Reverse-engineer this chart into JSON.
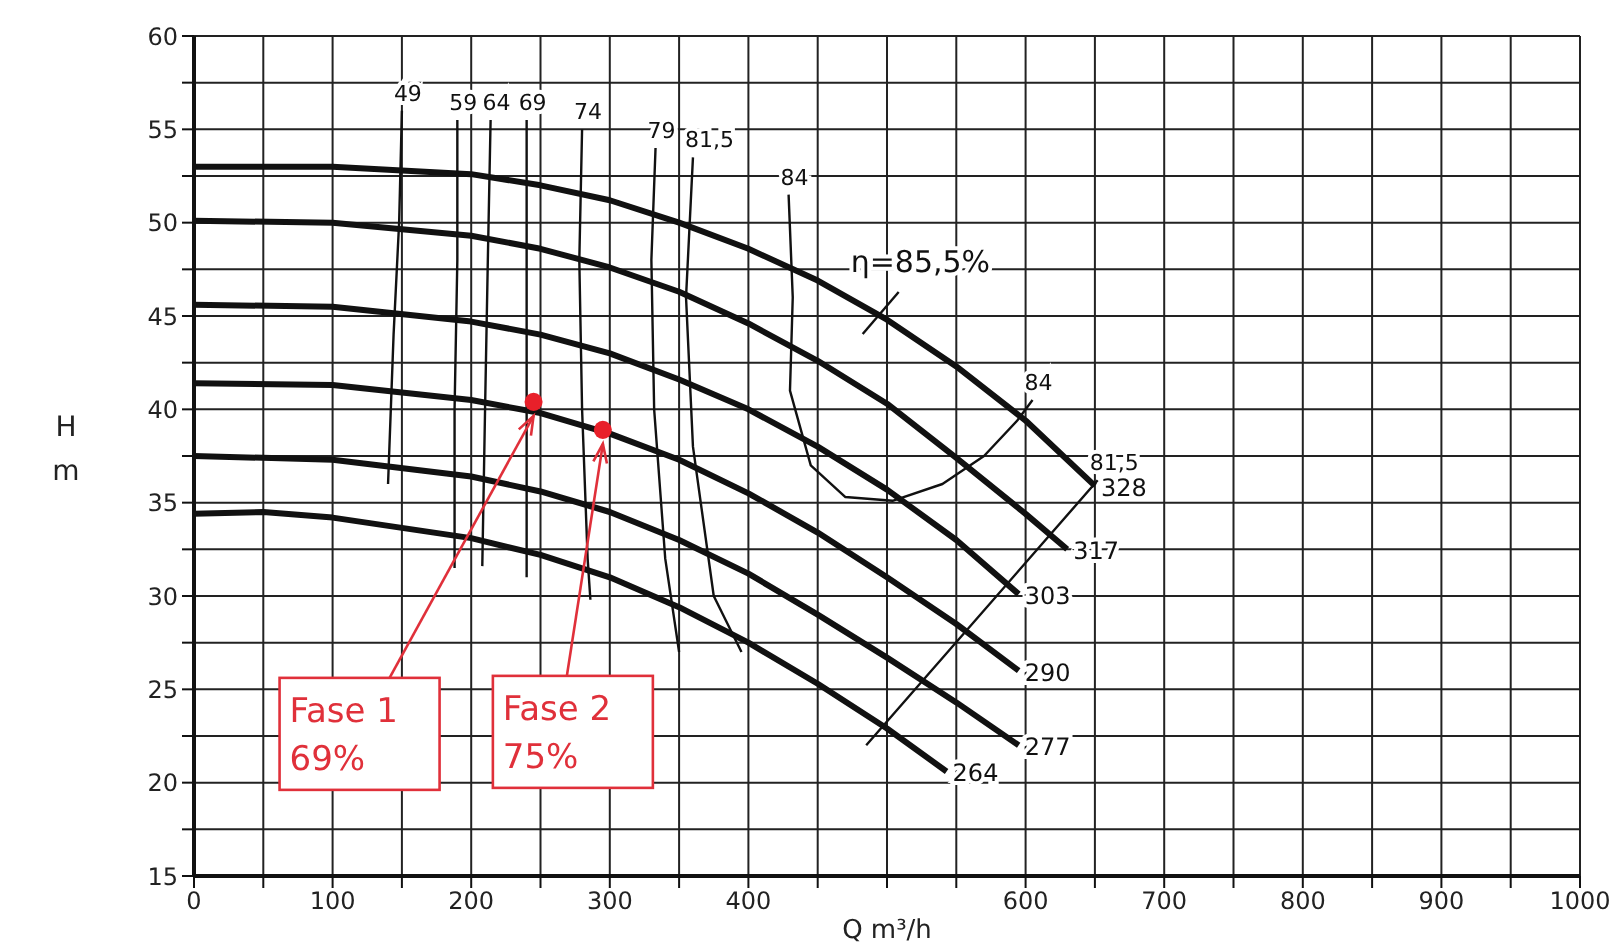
{
  "chart_data": {
    "type": "line",
    "xlabel": "Q m³/h",
    "ylabel": "H\nm",
    "xlim": [
      0,
      1000
    ],
    "xticks": [
      0,
      {
        "value": 50,
        "label": null
      },
      100,
      {
        "value": 150,
        "label": null
      },
      200,
      {
        "value": 250,
        "label": null
      },
      300,
      {
        "value": 350,
        "label": null
      },
      400,
      {
        "value": 450,
        "label": null
      },
      {
        "value": 500,
        "label": null
      },
      {
        "value": 550,
        "label": null
      },
      600,
      {
        "value": 650,
        "label": null
      },
      700,
      {
        "value": 750,
        "label": null
      },
      800,
      {
        "value": 850,
        "label": null
      },
      900,
      {
        "value": 950,
        "label": null
      },
      1000
    ],
    "ylim": [
      15,
      60
    ],
    "yticks": [
      15,
      {
        "value": 17.5,
        "label": null
      },
      20,
      {
        "value": 22.5,
        "label": null
      },
      25,
      {
        "value": 27.5,
        "label": null
      },
      30,
      {
        "value": 32.5,
        "label": null
      },
      35,
      {
        "value": 37.5,
        "label": null
      },
      40,
      {
        "value": 42.5,
        "label": null
      },
      45,
      {
        "value": 47.5,
        "label": null
      },
      50,
      {
        "value": 52.5,
        "label": null
      },
      55,
      {
        "value": 57.5,
        "label": null
      },
      60
    ],
    "grid": true,
    "legend": false,
    "series": [
      {
        "name": "328",
        "color": "#111111",
        "x": [
          0,
          100,
          200,
          250,
          300,
          350,
          400,
          450,
          500,
          550,
          600,
          650
        ],
        "values": [
          53,
          53,
          52.6,
          52,
          51.2,
          50,
          48.6,
          46.9,
          44.8,
          42.3,
          39.4,
          35.9
        ]
      },
      {
        "name": "317",
        "color": "#111111",
        "x": [
          0,
          100,
          200,
          250,
          300,
          350,
          400,
          450,
          500,
          550,
          600,
          630
        ],
        "values": [
          50.1,
          50,
          49.3,
          48.6,
          47.6,
          46.3,
          44.6,
          42.6,
          40.3,
          37.4,
          34.4,
          32.5
        ]
      },
      {
        "name": "303",
        "color": "#111111",
        "x": [
          0,
          100,
          200,
          250,
          300,
          350,
          400,
          450,
          500,
          550,
          595
        ],
        "values": [
          45.6,
          45.5,
          44.7,
          44,
          43,
          41.6,
          40,
          38,
          35.7,
          33,
          30.1
        ]
      },
      {
        "name": "290",
        "color": "#111111",
        "x": [
          0,
          100,
          200,
          250,
          300,
          350,
          400,
          450,
          500,
          550,
          595
        ],
        "values": [
          41.4,
          41.3,
          40.5,
          39.8,
          38.7,
          37.3,
          35.5,
          33.4,
          31,
          28.5,
          26
        ]
      },
      {
        "name": "277",
        "color": "#111111",
        "x": [
          0,
          100,
          200,
          250,
          300,
          350,
          400,
          450,
          500,
          550,
          595
        ],
        "values": [
          37.5,
          37.3,
          36.4,
          35.6,
          34.5,
          33,
          31.2,
          29,
          26.7,
          24.3,
          22
        ]
      },
      {
        "name": "264",
        "color": "#111111",
        "x": [
          0,
          50,
          100,
          200,
          250,
          300,
          350,
          400,
          450,
          500,
          543
        ],
        "values": [
          34.4,
          34.5,
          34.2,
          33.1,
          32.2,
          31,
          29.4,
          27.5,
          25.3,
          22.9,
          20.6
        ]
      },
      {
        "name": "49",
        "color": "#111111",
        "x": [
          150,
          148,
          144,
          140
        ],
        "values": [
          56,
          50,
          44,
          36
        ]
      },
      {
        "name": "59",
        "color": "#111111",
        "x": [
          190,
          190,
          188,
          188
        ],
        "values": [
          55.5,
          48,
          40,
          31.5
        ]
      },
      {
        "name": "64",
        "color": "#111111",
        "x": [
          214,
          212,
          210,
          208
        ],
        "values": [
          55.5,
          48,
          40,
          31.6
        ]
      },
      {
        "name": "69",
        "color": "#111111",
        "x": [
          240,
          240,
          240,
          240
        ],
        "values": [
          55.5,
          48,
          40,
          31
        ]
      },
      {
        "name": "74",
        "color": "#111111",
        "x": [
          280,
          278,
          280,
          284,
          286
        ],
        "values": [
          55,
          48,
          40,
          32,
          29.8
        ]
      },
      {
        "name": "79",
        "color": "#111111",
        "x": [
          333,
          330,
          332,
          340,
          350
        ],
        "values": [
          54,
          48,
          40,
          32,
          27
        ]
      },
      {
        "name": "81,5",
        "color": "#111111",
        "x": [
          360,
          355,
          360,
          375,
          395,
          440,
          485,
          652
        ],
        "values": [
          53.5,
          46,
          38,
          30,
          27,
          null,
          22,
          36.2
        ]
      },
      {
        "name": "84",
        "color": "#111111",
        "x": [
          429,
          432,
          430,
          445,
          470,
          504,
          540,
          570,
          594,
          605
        ],
        "values": [
          51.5,
          46,
          41,
          37,
          35.3,
          35.1,
          36,
          37.5,
          39.4,
          40.5
        ]
      },
      {
        "type": "scatter",
        "marker": "circle",
        "color": "#e8202a",
        "x": [
          245,
          295
        ],
        "values": [
          40.4,
          38.9
        ]
      }
    ],
    "annotations": [
      {
        "text": "η=85,5%",
        "x": 494,
        "y": 45
      },
      {
        "text": "Fase 1\n69%",
        "x": 245,
        "y": 40.4
      },
      {
        "text": "Fase 2\n75%",
        "x": 295,
        "y": 38.9
      }
    ]
  }
}
